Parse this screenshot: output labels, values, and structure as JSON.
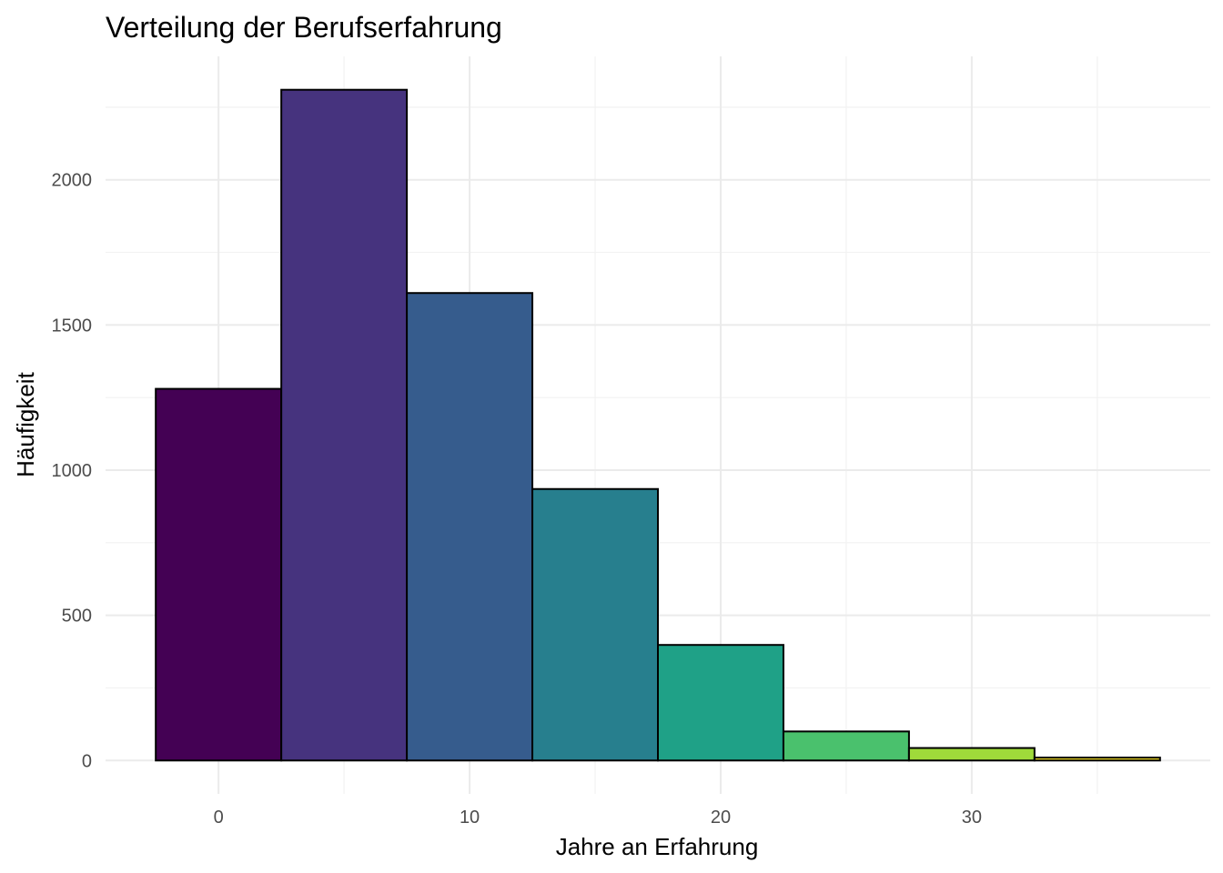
{
  "chart_data": {
    "type": "bar",
    "subtype": "histogram",
    "title": "Verteilung der Berufserfahrung",
    "xlabel": "Jahre an Erfahrung",
    "ylabel": "Häufigkeit",
    "bins": [
      {
        "x_start": -2.5,
        "x_end": 2.5,
        "value": 1280,
        "color": "#440154"
      },
      {
        "x_start": 2.5,
        "x_end": 7.5,
        "value": 2310,
        "color": "#46337E"
      },
      {
        "x_start": 7.5,
        "x_end": 12.5,
        "value": 1610,
        "color": "#365C8D"
      },
      {
        "x_start": 12.5,
        "x_end": 17.5,
        "value": 935,
        "color": "#277F8E"
      },
      {
        "x_start": 17.5,
        "x_end": 22.5,
        "value": 398,
        "color": "#1FA187"
      },
      {
        "x_start": 22.5,
        "x_end": 27.5,
        "value": 100,
        "color": "#4AC16D"
      },
      {
        "x_start": 27.5,
        "x_end": 32.5,
        "value": 43,
        "color": "#9FDA3A"
      },
      {
        "x_start": 32.5,
        "x_end": 37.5,
        "value": 10,
        "color": "#FDE725"
      }
    ],
    "x_ticks": [
      "0",
      "10",
      "20",
      "30"
    ],
    "y_ticks": [
      "0",
      "500",
      "1000",
      "1500",
      "2000"
    ],
    "xlim": [
      -4.5,
      39.5
    ],
    "ylim": [
      -115,
      2425
    ],
    "grid": true,
    "legend": "none"
  }
}
